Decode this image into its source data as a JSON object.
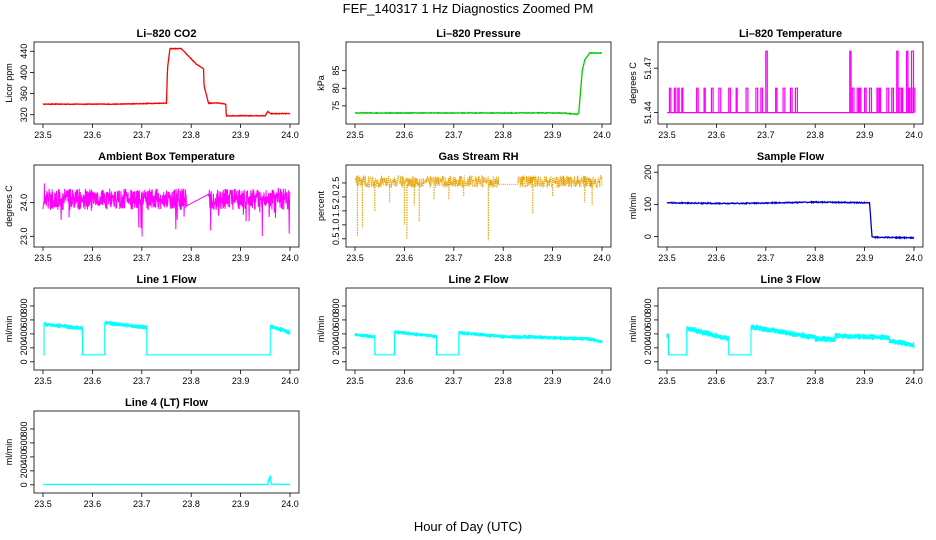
{
  "figure": {
    "title": "FEF_140317  1 Hz Diagnostics Zoomed PM",
    "xlabel": "Hour of Day (UTC)"
  },
  "chart_data": [
    {
      "id": "co2",
      "type": "line",
      "title": "Li–820 CO2",
      "ylabel": "Licor ppm",
      "color": "#ff0000",
      "xlim": [
        23.5,
        24.0
      ],
      "ylim": [
        310,
        450
      ],
      "xticks": [
        "23.5",
        "23.6",
        "23.7",
        "23.8",
        "23.9",
        "24.0"
      ],
      "yticks": [
        320,
        360,
        400,
        440
      ],
      "noise": 0.6,
      "series": [
        {
          "name": "CO2",
          "x": [
            23.5,
            23.65,
            23.75,
            23.752,
            23.757,
            23.78,
            23.81,
            23.825,
            23.826,
            23.835,
            23.855,
            23.87,
            23.871,
            23.89,
            23.95,
            23.955,
            23.96,
            23.97,
            23.99,
            24.0
          ],
          "values": [
            340,
            340,
            342,
            408,
            445,
            445,
            416,
            407,
            375,
            342,
            342,
            340,
            318,
            318,
            318,
            326,
            322,
            322,
            322,
            322
          ]
        }
      ]
    },
    {
      "id": "pressure",
      "type": "line",
      "title": "Li–820 Pressure",
      "ylabel": "kPa",
      "color": "#00cc00",
      "xlim": [
        23.5,
        24.0
      ],
      "ylim": [
        71,
        92
      ],
      "xticks": [
        "23.5",
        "23.6",
        "23.7",
        "23.8",
        "23.9",
        "24.0"
      ],
      "yticks": [
        75,
        80,
        85
      ],
      "noise": 0.1,
      "series": [
        {
          "name": "Pressure",
          "x": [
            23.5,
            23.92,
            23.95,
            23.953,
            23.96,
            23.965,
            23.975,
            24.0
          ],
          "values": [
            73,
            73,
            72.6,
            73,
            85,
            88,
            90,
            90
          ]
        }
      ]
    },
    {
      "id": "li_temp",
      "type": "spikes",
      "title": "Li–820 Temperature",
      "ylabel": "degrees C",
      "color": "#ff00ff",
      "xlim": [
        23.5,
        24.0
      ],
      "ylim": [
        51.435,
        51.485
      ],
      "xticks": [
        "23.5",
        "23.6",
        "23.7",
        "23.8",
        "23.9",
        "24.0"
      ],
      "yticks": [
        51.44,
        51.47
      ],
      "ytick_labels": [
        "51.44",
        "51.47"
      ],
      "baseline": 51.44,
      "low": 51.4565,
      "high": 51.4815,
      "spike_x": [
        23.505,
        23.515,
        23.522,
        23.53,
        23.56,
        23.575,
        23.59,
        23.605,
        23.625,
        23.64,
        23.66,
        23.68,
        23.69,
        23.7,
        23.72,
        23.735,
        23.75,
        23.76,
        23.87,
        23.875,
        23.885,
        23.89,
        23.9,
        23.91,
        23.925,
        23.93,
        23.945,
        23.955,
        23.965,
        23.97,
        23.975,
        23.985,
        23.99,
        23.995,
        23.998
      ],
      "spike_high_x": [
        23.615,
        23.7,
        23.87,
        23.965,
        23.985,
        23.995
      ]
    },
    {
      "id": "ambient",
      "type": "noise",
      "title": "Ambient Box Temperature",
      "ylabel": "degrees C",
      "color": "#ff00ff",
      "xlim": [
        23.5,
        24.0
      ],
      "ylim": [
        22.8,
        25.0
      ],
      "xticks": [
        "23.5",
        "23.6",
        "23.7",
        "23.8",
        "23.9",
        "24.0"
      ],
      "yticks": [
        23.0,
        24.0
      ],
      "ytick_labels": [
        "23.0",
        "24.0"
      ],
      "center": 24.1,
      "spread": 0.32,
      "spike_depth": 0.9,
      "gaps": [
        [
          23.79,
          23.835,
          23.9,
          24.25
        ]
      ]
    },
    {
      "id": "rh",
      "type": "dots",
      "title": "Gas Stream RH",
      "ylabel": "percent",
      "color": "#e6a000",
      "xlim": [
        23.5,
        24.0
      ],
      "ylim": [
        0.35,
        3.0
      ],
      "xticks": [
        "23.5",
        "23.6",
        "23.7",
        "23.8",
        "23.9",
        "24.0"
      ],
      "yticks": [
        0.5,
        1.0,
        1.5,
        2.0,
        2.5
      ],
      "ytick_labels": [
        "0.5",
        "1.0",
        "1.5",
        "2.0",
        "2.5"
      ],
      "center": 2.55,
      "spread": 0.22,
      "gap": [
        23.79,
        23.83
      ],
      "gap_value": 2.45,
      "dips": [
        [
          23.505,
          0.6
        ],
        [
          23.515,
          0.9
        ],
        [
          23.54,
          1.5
        ],
        [
          23.57,
          1.8
        ],
        [
          23.6,
          1.0
        ],
        [
          23.605,
          0.5
        ],
        [
          23.62,
          1.7
        ],
        [
          23.63,
          1.1
        ],
        [
          23.66,
          1.9
        ],
        [
          23.69,
          1.9
        ],
        [
          23.72,
          2.0
        ],
        [
          23.77,
          0.45
        ],
        [
          23.86,
          1.4
        ],
        [
          23.9,
          2.0
        ],
        [
          23.965,
          1.8
        ],
        [
          23.98,
          1.7
        ]
      ]
    },
    {
      "id": "sample_flow",
      "type": "line",
      "title": "Sample Flow",
      "ylabel": "ml/min",
      "color": "#0000cc",
      "xlim": [
        23.5,
        24.0
      ],
      "ylim": [
        -20,
        210
      ],
      "xticks": [
        "23.5",
        "23.6",
        "23.7",
        "23.8",
        "23.9",
        "24.0"
      ],
      "yticks": [
        0,
        100,
        200
      ],
      "noise": 1.6,
      "series": [
        {
          "name": "Sample Flow",
          "x": [
            23.5,
            23.6,
            23.65,
            23.8,
            23.91,
            23.915,
            23.92,
            24.0
          ],
          "values": [
            105,
            103,
            103,
            107,
            105,
            0,
            -2,
            -4
          ]
        }
      ]
    },
    {
      "id": "line1",
      "type": "band",
      "title": "Line 1 Flow",
      "ylabel": "ml/min",
      "color": "#00ffff",
      "xlim": [
        23.5,
        24.0
      ],
      "ylim": [
        -60,
        1000
      ],
      "xticks": [
        "23.5",
        "23.6",
        "23.7",
        "23.8",
        "23.9",
        "24.0"
      ],
      "yticks": [
        0,
        200,
        400,
        600,
        800
      ],
      "segments": [
        [
          23.5,
          23.502,
          100,
          100
        ],
        [
          23.502,
          23.58,
          540,
          480
        ],
        [
          23.58,
          23.625,
          100,
          100
        ],
        [
          23.625,
          23.71,
          560,
          490
        ],
        [
          23.71,
          23.96,
          100,
          100
        ],
        [
          23.96,
          24.0,
          510,
          420
        ]
      ],
      "band": 35
    },
    {
      "id": "line2",
      "type": "band",
      "title": "Line 2 Flow",
      "ylabel": "ml/min",
      "color": "#00ffff",
      "xlim": [
        23.5,
        24.0
      ],
      "ylim": [
        -60,
        1000
      ],
      "xticks": [
        "23.5",
        "23.6",
        "23.7",
        "23.8",
        "23.9",
        "24.0"
      ],
      "yticks": [
        0,
        200,
        400,
        600,
        800
      ],
      "segments": [
        [
          23.5,
          23.54,
          390,
          360
        ],
        [
          23.54,
          23.58,
          100,
          100
        ],
        [
          23.58,
          23.665,
          430,
          360
        ],
        [
          23.665,
          23.71,
          100,
          100
        ],
        [
          23.71,
          23.8,
          420,
          360
        ],
        [
          23.8,
          23.84,
          360,
          350
        ],
        [
          23.84,
          23.96,
          360,
          330
        ],
        [
          23.96,
          24.0,
          340,
          290
        ]
      ],
      "band": 30
    },
    {
      "id": "line3",
      "type": "band",
      "title": "Line 3 Flow",
      "ylabel": "ml/min",
      "color": "#00ffff",
      "xlim": [
        23.5,
        24.0
      ],
      "ylim": [
        -60,
        1000
      ],
      "xticks": [
        "23.5",
        "23.6",
        "23.7",
        "23.8",
        "23.9",
        "24.0"
      ],
      "yticks": [
        0,
        200,
        400,
        600,
        800
      ],
      "segments": [
        [
          23.5,
          23.503,
          380,
          380
        ],
        [
          23.503,
          23.54,
          100,
          100
        ],
        [
          23.54,
          23.625,
          480,
          330
        ],
        [
          23.625,
          23.67,
          100,
          100
        ],
        [
          23.67,
          23.8,
          500,
          350
        ],
        [
          23.8,
          23.84,
          330,
          320
        ],
        [
          23.84,
          23.95,
          370,
          350
        ],
        [
          23.95,
          24.0,
          300,
          240
        ]
      ],
      "band": 45
    },
    {
      "id": "line4",
      "type": "line",
      "title": "Line 4 (LT) Flow",
      "ylabel": "ml/min",
      "color": "#00ffff",
      "xlim": [
        23.5,
        24.0
      ],
      "ylim": [
        -60,
        1000
      ],
      "xticks": [
        "23.5",
        "23.6",
        "23.7",
        "23.8",
        "23.9",
        "24.0"
      ],
      "yticks": [
        0,
        200,
        400,
        600,
        800
      ],
      "noise": 1.5,
      "series": [
        {
          "name": "Line 4",
          "x": [
            23.5,
            23.955,
            23.957,
            23.96,
            23.962,
            24.0
          ],
          "values": [
            5,
            5,
            80,
            120,
            10,
            5
          ]
        }
      ]
    }
  ]
}
